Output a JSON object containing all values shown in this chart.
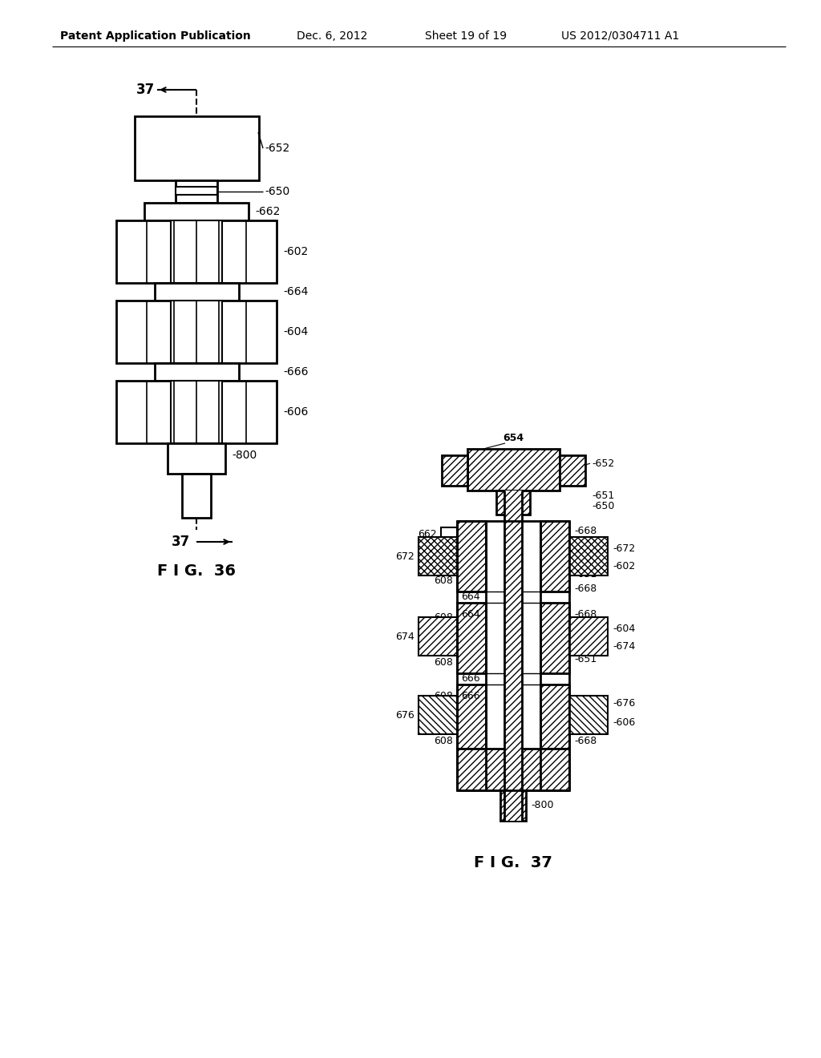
{
  "bg_color": "#ffffff",
  "header_text": "Patent Application Publication",
  "header_date": "Dec. 6, 2012",
  "header_sheet": "Sheet 19 of 19",
  "header_patent": "US 2012/0304711 A1",
  "fig36_label": "F I G.  36",
  "fig37_label": "F I G.  37"
}
